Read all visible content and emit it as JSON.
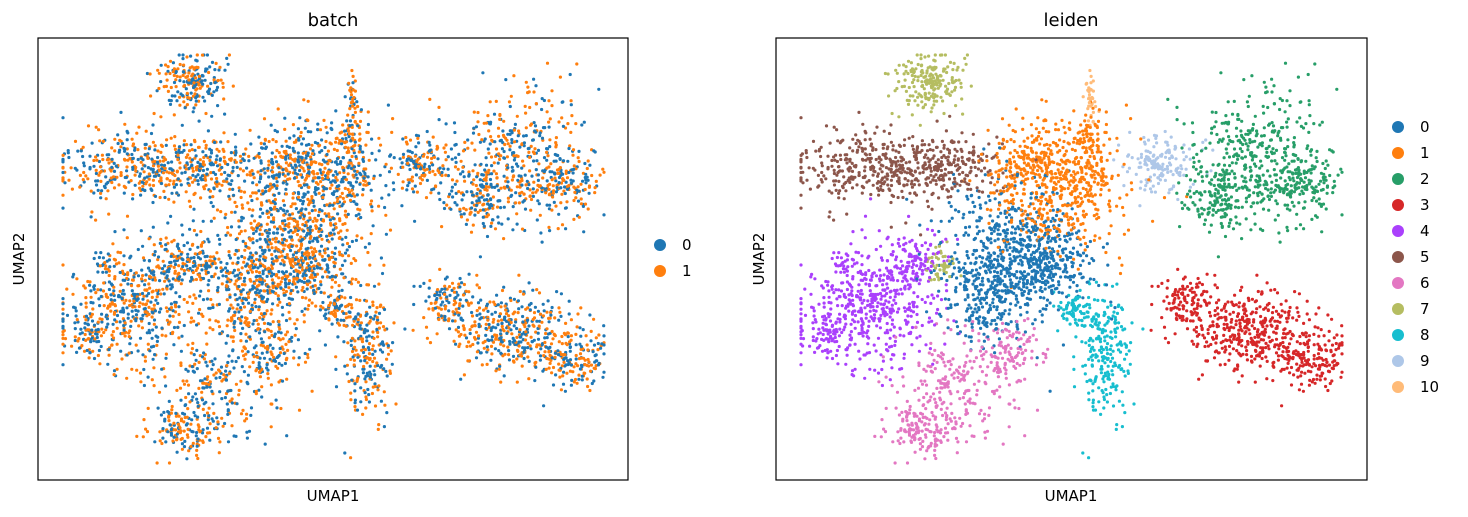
{
  "chart_data": [
    {
      "type": "scatter",
      "title": "batch",
      "xlabel": "UMAP1",
      "ylabel": "UMAP2",
      "grid": false,
      "ticks": false,
      "legend_position": "right",
      "series": [
        {
          "name": "0",
          "color": "#1f77b4"
        },
        {
          "name": "1",
          "color": "#ff7f0e"
        }
      ]
    },
    {
      "type": "scatter",
      "title": "leiden",
      "xlabel": "UMAP1",
      "ylabel": "UMAP2",
      "grid": false,
      "ticks": false,
      "legend_position": "right",
      "series": [
        {
          "name": "0",
          "color": "#1f77b4"
        },
        {
          "name": "1",
          "color": "#ff7f0e"
        },
        {
          "name": "2",
          "color": "#279e68"
        },
        {
          "name": "3",
          "color": "#d62728"
        },
        {
          "name": "4",
          "color": "#aa40fc"
        },
        {
          "name": "5",
          "color": "#8c564b"
        },
        {
          "name": "6",
          "color": "#e377c2"
        },
        {
          "name": "7",
          "color": "#b5bd61"
        },
        {
          "name": "8",
          "color": "#17becf"
        },
        {
          "name": "9",
          "color": "#aec7e8"
        },
        {
          "name": "10",
          "color": "#ffbb78"
        }
      ]
    }
  ]
}
